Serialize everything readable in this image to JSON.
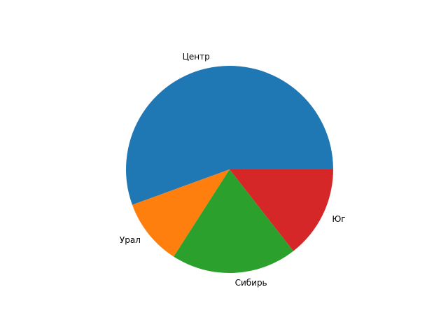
{
  "chart_data": {
    "type": "pie",
    "categories": [
      "Центр",
      "Урал",
      "Сибирь",
      "Юг"
    ],
    "values": [
      150,
      28,
      53,
      39
    ],
    "colors": [
      "#1f77b4",
      "#ff7f0e",
      "#2ca02c",
      "#d62728"
    ],
    "start_angle": 0,
    "direction": "counterclockwise",
    "title": ""
  }
}
